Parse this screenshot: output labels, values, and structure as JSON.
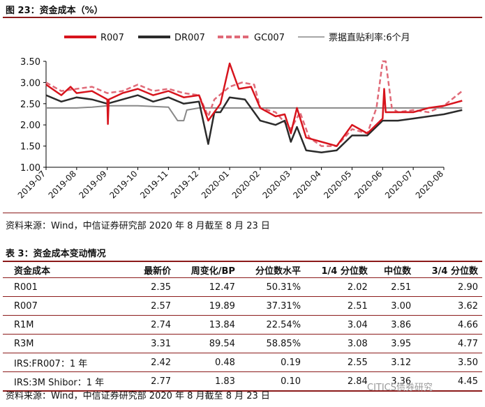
{
  "figure": {
    "title": "图 23：资金成本（%）",
    "source": "资料来源：Wind，中信证券研究部  2020 年 8 月截至 8 月 23 日"
  },
  "chart_data": {
    "type": "line",
    "ylim": [
      1.0,
      3.5
    ],
    "yticks": [
      "3.50",
      "3.00",
      "2.50",
      "2.00",
      "1.50",
      "1.00"
    ],
    "xticks": [
      "2019-07",
      "2019-08",
      "2019-09",
      "2019-10",
      "2019-11",
      "2019-12",
      "2020-01",
      "2020-02",
      "2020-03",
      "2020-04",
      "2020-05",
      "2020-06",
      "2020-07",
      "2020-08"
    ],
    "legend_position": "top",
    "series": [
      {
        "name": "R007",
        "color": "#d7141d",
        "x": [
          0,
          0.5,
          0.8,
          1,
          1.5,
          2,
          2.02,
          2.05,
          2.5,
          3,
          3.5,
          4,
          4.5,
          5,
          5.3,
          5.7,
          6,
          6.3,
          6.7,
          7,
          7.5,
          7.8,
          8,
          8.2,
          8.5,
          9,
          9.5,
          10,
          10.5,
          11,
          11.05,
          11.1,
          11.5,
          12,
          12.5,
          13,
          13.6
        ],
        "y": [
          2.95,
          2.7,
          2.9,
          2.75,
          2.8,
          2.6,
          2.02,
          2.6,
          2.75,
          2.85,
          2.7,
          2.8,
          2.65,
          2.7,
          2.1,
          2.5,
          3.45,
          2.85,
          2.9,
          2.4,
          2.2,
          2.25,
          1.8,
          2.4,
          1.7,
          1.6,
          1.5,
          2.0,
          1.8,
          2.15,
          2.85,
          2.3,
          2.3,
          2.3,
          2.4,
          2.45,
          2.57
        ]
      },
      {
        "name": "DR007",
        "color": "#2b2b2b",
        "x": [
          0,
          0.5,
          1,
          1.5,
          2,
          2.5,
          3,
          3.5,
          4,
          4.5,
          5,
          5.3,
          5.5,
          5.7,
          6,
          6.5,
          7,
          7.5,
          7.8,
          8,
          8.2,
          8.5,
          9,
          9.5,
          10,
          10.5,
          11,
          11.5,
          12,
          12.5,
          13,
          13.6
        ],
        "y": [
          2.7,
          2.55,
          2.65,
          2.6,
          2.5,
          2.6,
          2.7,
          2.55,
          2.65,
          2.5,
          2.55,
          1.55,
          2.3,
          2.3,
          2.65,
          2.6,
          2.1,
          2.0,
          2.1,
          1.6,
          1.95,
          1.4,
          1.35,
          1.4,
          1.75,
          1.75,
          2.1,
          2.1,
          2.15,
          2.2,
          2.25,
          2.35
        ]
      },
      {
        "name": "GC007",
        "color": "#e06a78",
        "dashed": true,
        "x": [
          0,
          0.5,
          1,
          1.5,
          2,
          2.5,
          3,
          3.5,
          4,
          4.5,
          5,
          5.3,
          5.5,
          6,
          6.4,
          6.8,
          7,
          7.5,
          8,
          8.3,
          8.6,
          9,
          9.5,
          10,
          10.5,
          10.8,
          11,
          11.1,
          11.3,
          11.5,
          12,
          12.5,
          13,
          13.6
        ],
        "y": [
          3.0,
          2.8,
          2.85,
          2.9,
          2.75,
          2.8,
          2.95,
          2.8,
          2.85,
          2.75,
          2.7,
          2.2,
          2.6,
          2.9,
          3.0,
          2.95,
          2.4,
          2.3,
          1.9,
          2.3,
          1.7,
          1.5,
          1.5,
          1.9,
          1.8,
          2.4,
          3.5,
          3.5,
          2.4,
          2.3,
          2.35,
          2.3,
          2.45,
          2.8
        ]
      },
      {
        "name": "票据直贴利率:6个月",
        "color": "#888888",
        "x": [
          0,
          1,
          1.5,
          2,
          3,
          4,
          4.3,
          4.5,
          4.6,
          5,
          5.5,
          6,
          7,
          8,
          9,
          10,
          11,
          12,
          13,
          13.6
        ],
        "y": [
          2.4,
          2.4,
          2.42,
          2.45,
          2.45,
          2.42,
          2.1,
          2.1,
          2.35,
          2.4,
          2.4,
          2.4,
          2.4,
          2.4,
          2.4,
          2.4,
          2.4,
          2.4,
          2.4,
          2.4
        ]
      }
    ]
  },
  "table": {
    "title": "表 3：资金成本变动情况",
    "headers": [
      "资金成本",
      "最新价",
      "周变化/BP",
      "分位数水平",
      "1/4 分位数",
      "中位数",
      "3/4 分位数"
    ],
    "rows": [
      [
        "R001",
        "2.35",
        "12.47",
        "50.31%",
        "2.02",
        "2.51",
        "2.90"
      ],
      [
        "R007",
        "2.57",
        "19.89",
        "37.31%",
        "2.51",
        "3.00",
        "3.62"
      ],
      [
        "R1M",
        "2.74",
        "13.84",
        "22.54%",
        "3.04",
        "3.86",
        "4.66"
      ],
      [
        "R3M",
        "3.31",
        "89.54",
        "58.85%",
        "3.08",
        "3.95",
        "4.77"
      ],
      [
        "IRS:FR007：1 年",
        "2.42",
        "0.48",
        "0.19",
        "2.55",
        "3.12",
        "3.50"
      ],
      [
        "IRS:3M Shibor：1 年",
        "2.77",
        "1.83",
        "0.10",
        "2.84",
        "3.36",
        "4.45"
      ]
    ],
    "source": "资料来源：Wind，中信证券研究部  2020 年 8 月截至 8 月 23 日"
  },
  "watermark": "CITICS债券研究"
}
